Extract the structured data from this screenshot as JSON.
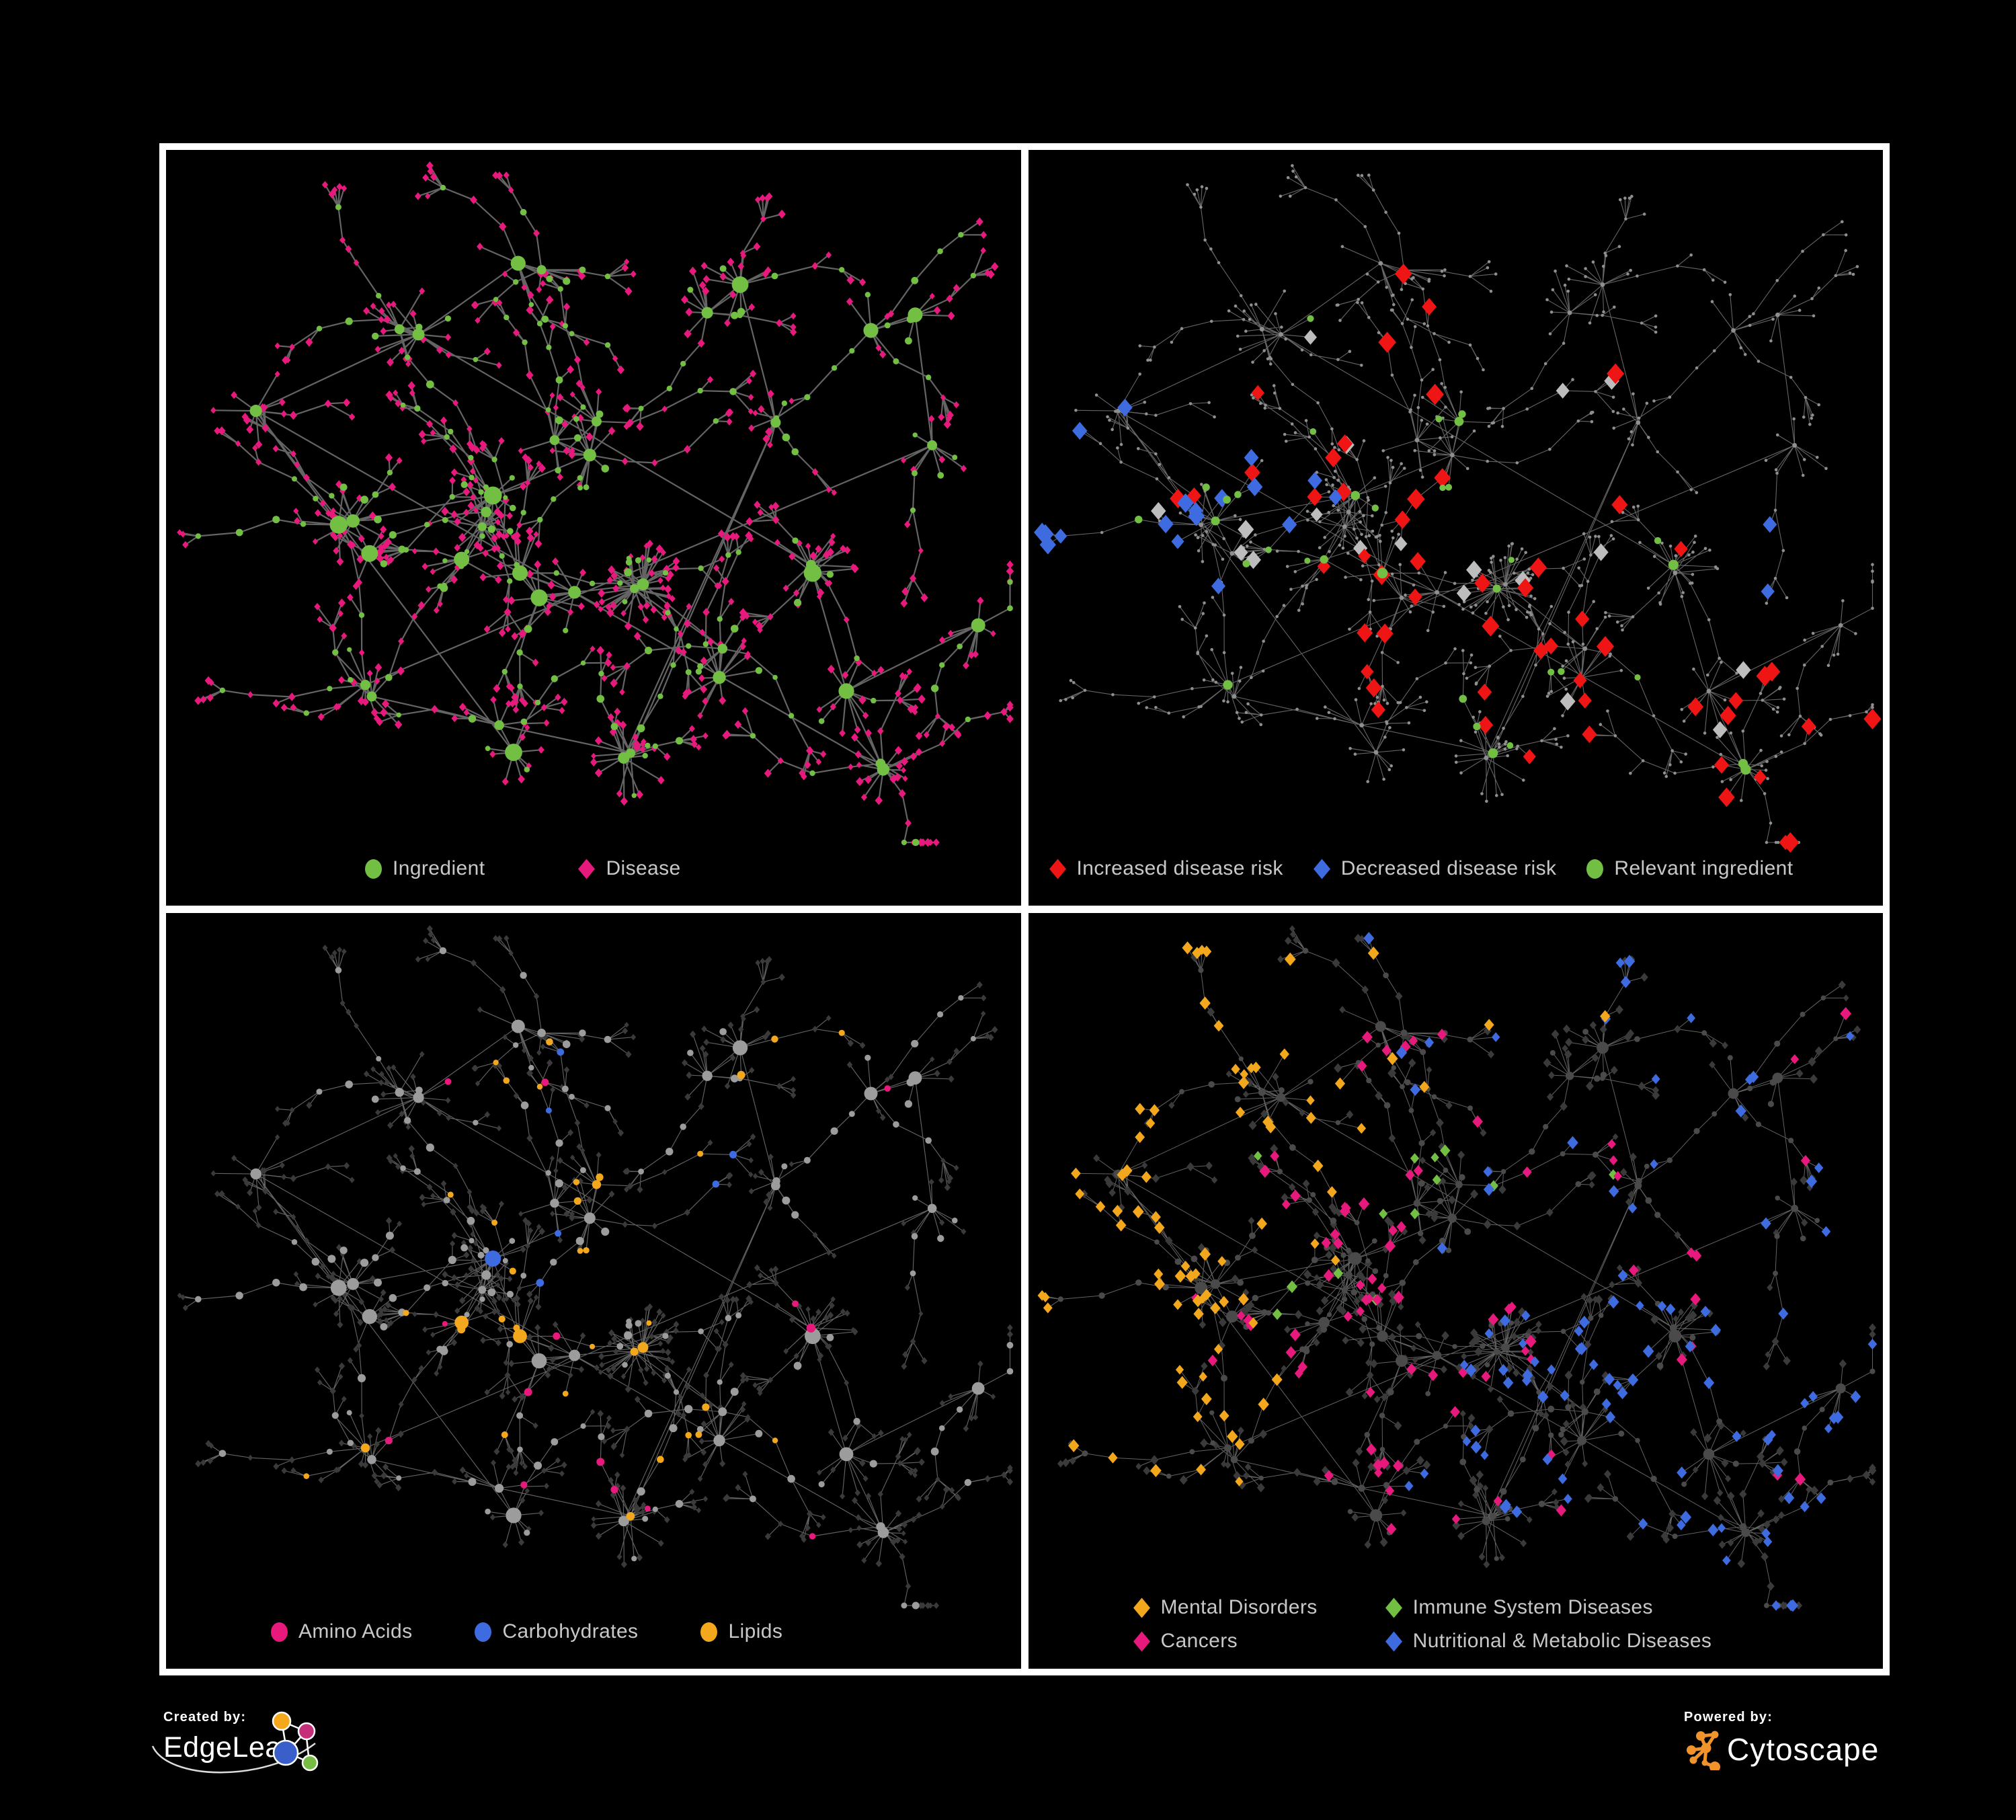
{
  "panels": [
    {
      "name": "ingredient-disease-network",
      "legend": {
        "layout": "row-1",
        "items": [
          {
            "label": "Ingredient",
            "shape": "circle",
            "color": "#72BF44"
          },
          {
            "label": "Disease",
            "shape": "diamond",
            "color": "#E8197C"
          }
        ]
      }
    },
    {
      "name": "disease-risk-network",
      "legend": {
        "layout": "row-2",
        "items": [
          {
            "label": "Increased disease risk",
            "shape": "diamond",
            "color": "#EF1515"
          },
          {
            "label": "Decreased disease risk",
            "shape": "diamond",
            "color": "#3E6BDF"
          },
          {
            "label": "Relevant ingredient",
            "shape": "circle",
            "color": "#72BF44"
          }
        ]
      }
    },
    {
      "name": "nutrient-class-network",
      "legend": {
        "layout": "row-3",
        "items": [
          {
            "label": "Amino Acids",
            "shape": "circle",
            "color": "#E8197C"
          },
          {
            "label": "Carbohydrates",
            "shape": "circle",
            "color": "#3E6BDF"
          },
          {
            "label": "Lipids",
            "shape": "circle",
            "color": "#F3A71D"
          }
        ]
      }
    },
    {
      "name": "disease-class-network",
      "legend": {
        "layout": "grid",
        "items": [
          {
            "label": "Mental Disorders",
            "shape": "diamond",
            "color": "#F3A71D"
          },
          {
            "label": "Immune System Diseases",
            "shape": "diamond",
            "color": "#72BF44"
          },
          {
            "label": "Cancers",
            "shape": "diamond",
            "color": "#E8197C"
          },
          {
            "label": "Nutritional & Metabolic Diseases",
            "shape": "diamond",
            "color": "#3E6BDF"
          }
        ]
      }
    }
  ],
  "footer": {
    "created_by": "Created by:",
    "brand_left": "EdgeLeap",
    "powered_by": "Powered by:",
    "brand_right": "Cytoscape"
  },
  "colors": {
    "background": "#000000",
    "panel_border": "#FFFFFF",
    "legend_text": "#C8C8C8",
    "green": "#72BF44",
    "pink": "#E8197C",
    "red": "#EF1515",
    "blue": "#3E6BDF",
    "orange": "#F3A71D",
    "tiny_gray_node": "#8F8F8F",
    "neutral_gray_diamond": "#BDBDBD",
    "dark_diamond": "#3A3A3A",
    "dark_circle": "#4A4A4A",
    "light_gray_circle": "#9C9C9C",
    "edge_panel1": "#696969",
    "edge_panel2": "#7E7E7E",
    "edge_panel3": "#8C8C8C",
    "edge_panel4": "#979797",
    "edgeleap_orange": "#F5A81C",
    "edgeleap_magenta": "#C52E78",
    "edgeleap_blue": "#3A5FCB",
    "edgeleap_green": "#76BC43",
    "cytoscape_orange": "#F0932B"
  }
}
